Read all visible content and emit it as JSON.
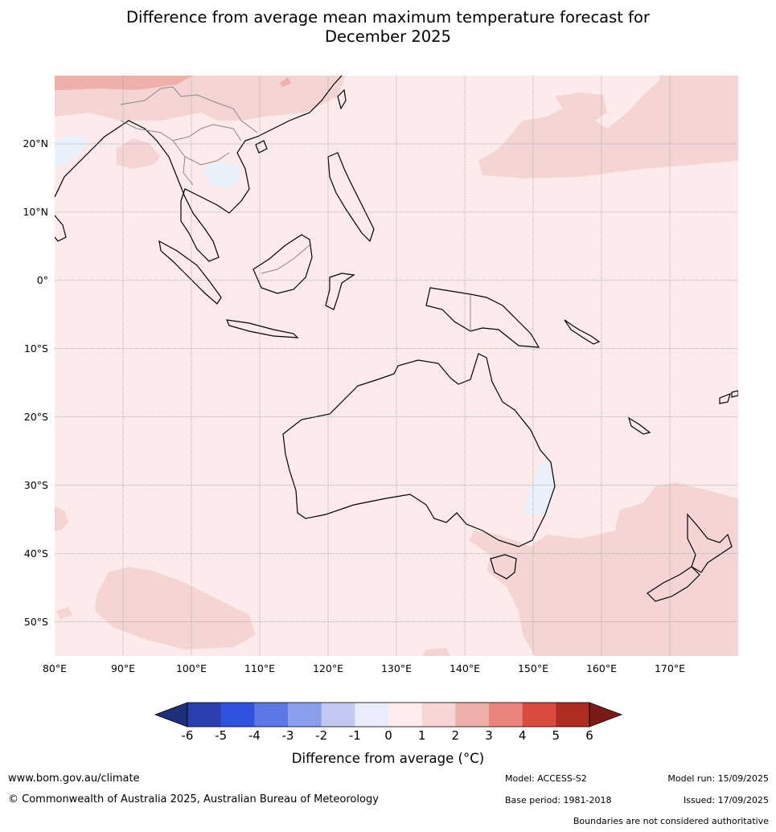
{
  "title": {
    "line1": "Difference from average mean maximum temperature forecast for",
    "line2": "December 2025"
  },
  "map": {
    "lat_ticks": [
      "20°N",
      "10°N",
      "0°",
      "10°S",
      "20°S",
      "30°S",
      "40°S",
      "50°S"
    ],
    "lon_ticks": [
      "80°E",
      "90°E",
      "100°E",
      "110°E",
      "120°E",
      "130°E",
      "140°E",
      "150°E",
      "160°E",
      "170°E"
    ],
    "extent": {
      "lon": [
        80,
        180
      ],
      "lat": [
        -55,
        30
      ]
    },
    "base_color": "#fcebea",
    "warm_color": "#f5d5d4",
    "warmer_color": "#eeb0ab",
    "cool_color": "#e9effb",
    "grid": true
  },
  "colorbar": {
    "ticks": [
      "-6",
      "-5",
      "-4",
      "-3",
      "-2",
      "-1",
      "0",
      "1",
      "2",
      "3",
      "4",
      "5",
      "6"
    ],
    "colors": [
      "#2b3fae",
      "#3152e0",
      "#5b78e6",
      "#8a9eec",
      "#c0c8f3",
      "#e9ecfb",
      "#fdeceb",
      "#f6d5d4",
      "#eeb0ab",
      "#e8847c",
      "#db4a3e",
      "#ae2c22"
    ],
    "low_extend_color": "#1e2f7c",
    "high_extend_color": "#7a1b17",
    "label": "Difference from average (°C)"
  },
  "footer": {
    "website": "www.bom.gov.au/climate",
    "copyright": "© Commonwealth of Australia 2025, Australian Bureau of Meteorology",
    "model": "Model: ACCESS-S2",
    "base_period": "Base period: 1981-2018",
    "model_run": "Model run: 15/09/2025",
    "issued": "Issued: 17/09/2025",
    "boundaries_note": "Boundaries are not considered authoritative"
  }
}
